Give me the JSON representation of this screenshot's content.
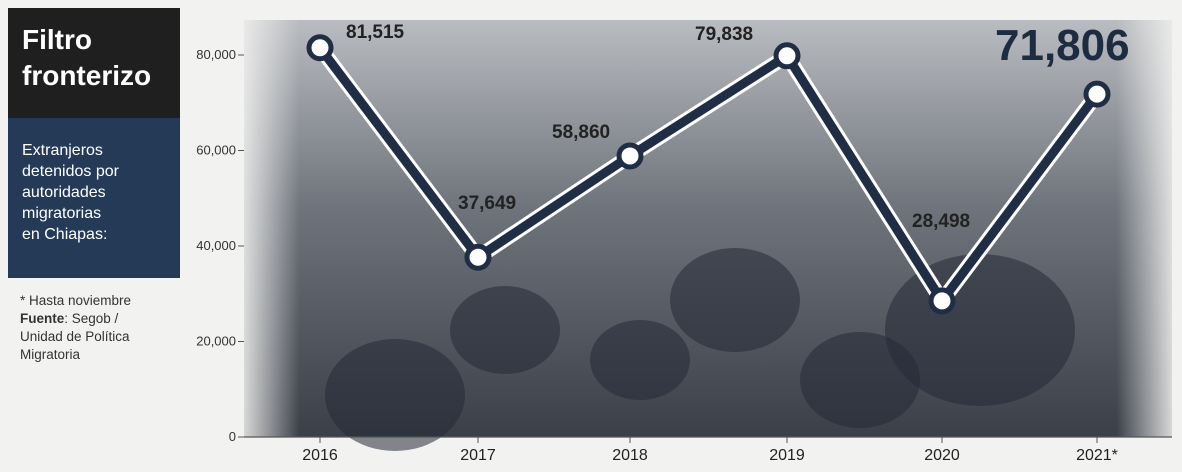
{
  "title_lines": [
    "Filtro",
    "fronterizo"
  ],
  "subtitle_lines": [
    "Extranjeros",
    "detenidos por",
    "autoridades",
    "migratorias",
    "en Chiapas:"
  ],
  "notes": {
    "footnote": "* Hasta noviembre",
    "source_label": "Fuente",
    "source_text": ": Segob /",
    "source_lines": [
      "Unidad de Política",
      "Migratoria"
    ]
  },
  "colors": {
    "line": "#1f2d45",
    "photo_bg": "#7a7f88",
    "marker_fill": "#ffffff"
  },
  "chart_data": {
    "type": "line",
    "title": "Filtro fronterizo",
    "categories": [
      "2016",
      "2017",
      "2018",
      "2019",
      "2020",
      "2021*"
    ],
    "series": [
      {
        "values": [
          81515,
          37649,
          58860,
          79838,
          28498,
          71806
        ]
      }
    ],
    "data_labels": [
      "81,515",
      "37,649",
      "58,860",
      "79,838",
      "28,498",
      "71,806"
    ],
    "yticks": [
      0,
      20000,
      40000,
      60000,
      80000
    ],
    "ytick_labels": [
      "0",
      "20,000",
      "40,000",
      "60,000",
      "80,000"
    ],
    "ylim": [
      0,
      80000
    ],
    "grid": false,
    "background": "photo of migrants and police officers"
  }
}
